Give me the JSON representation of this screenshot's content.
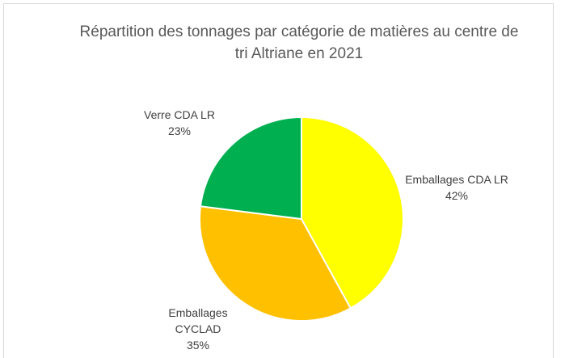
{
  "chart_data": {
    "type": "pie",
    "title": "Répartition des tonnages par catégorie de matières au centre de tri Altriane en 2021",
    "categories": [
      "Emballages CDA LR",
      "Emballages CYCLAD",
      "Verre CDA LR"
    ],
    "values": [
      42,
      35,
      23
    ],
    "value_labels": [
      "42%",
      "35%",
      "23%"
    ],
    "colors": [
      "#ffff00",
      "#ffc000",
      "#00b050"
    ]
  }
}
